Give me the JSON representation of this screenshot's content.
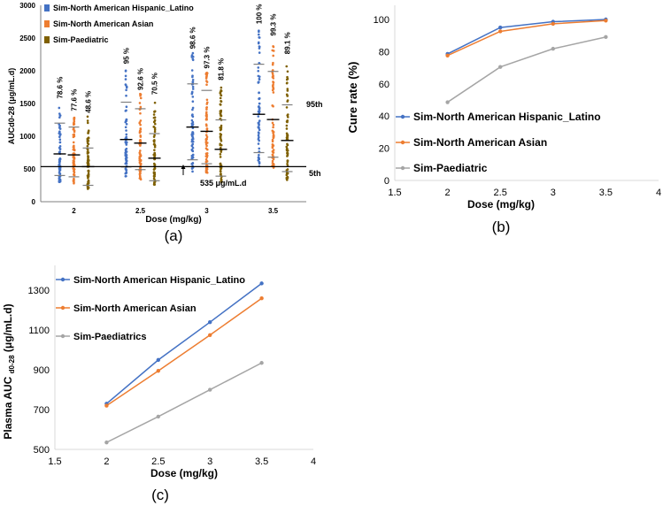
{
  "chart_data": [
    {
      "panel": "a",
      "type": "scatter",
      "caption": "(a)",
      "xlabel": "Dose (mg/kg)",
      "ylabel": "AUCd0-28 (μg/mL.d)",
      "ylim": [
        0,
        3000
      ],
      "yticks": [
        "0",
        "500",
        "1000",
        "1500",
        "2000",
        "2500",
        "3000"
      ],
      "categories": [
        "2",
        "2.5",
        "3",
        "3.5"
      ],
      "threshold": {
        "value": 535,
        "label": "535 μg/mL.d",
        "p5_label": "5th",
        "p95_label": "95th"
      },
      "series": [
        {
          "name": "Sim-North American Hispanic_Latino",
          "color": "#4472c4",
          "cure_labels": [
            "78.6 %",
            "95 %",
            "98.6 %",
            "100 %"
          ],
          "median": [
            730,
            950,
            1140,
            1335
          ],
          "p5": [
            400,
            530,
            640,
            750
          ],
          "p95": [
            1200,
            1520,
            1800,
            2100
          ],
          "min": [
            300,
            380,
            450,
            540
          ],
          "max": [
            1520,
            2050,
            2280,
            2660
          ]
        },
        {
          "name": "Sim-North American Asian",
          "color": "#ed7d31",
          "cure_labels": [
            "77.6 %",
            "92.6 %",
            "97.3 %",
            "99.3 %"
          ],
          "median": [
            715,
            895,
            1075,
            1255
          ],
          "p5": [
            380,
            490,
            580,
            680
          ],
          "p95": [
            1140,
            1420,
            1700,
            1990
          ],
          "min": [
            280,
            340,
            400,
            500
          ],
          "max": [
            1330,
            1650,
            1980,
            2480
          ]
        },
        {
          "name": "Sim-Paediatric",
          "color": "#7f6000",
          "cure_labels": [
            "48.6 %",
            "70.5 %",
            "81.8 %",
            "89.1 %"
          ],
          "median": [
            535,
            665,
            800,
            935
          ],
          "p5": [
            250,
            320,
            390,
            460
          ],
          "p95": [
            820,
            1040,
            1250,
            1480
          ],
          "min": [
            180,
            230,
            280,
            330
          ],
          "max": [
            1300,
            1580,
            1800,
            2200
          ]
        }
      ]
    },
    {
      "panel": "b",
      "type": "line",
      "caption": "(b)",
      "xlabel": "Dose (mg/kg)",
      "ylabel": "Cure rate (%)",
      "xlim": [
        1.5,
        4
      ],
      "ylim": [
        0,
        100
      ],
      "xticks": [
        "1.5",
        "2",
        "2.5",
        "3",
        "3.5",
        "4"
      ],
      "yticks": [
        "0",
        "20",
        "40",
        "60",
        "80",
        "100"
      ],
      "x": [
        2,
        2.5,
        3,
        3.5
      ],
      "series": [
        {
          "name": "Sim-North American Hispanic_Latino",
          "color": "#4472c4",
          "values": [
            78.6,
            95,
            98.6,
            100
          ]
        },
        {
          "name": "Sim-North American Asian",
          "color": "#ed7d31",
          "values": [
            77.6,
            92.6,
            97.3,
            99.3
          ]
        },
        {
          "name": "Sim-Paediatric",
          "color": "#a5a5a5",
          "values": [
            48.6,
            70.5,
            81.8,
            89.1
          ]
        }
      ]
    },
    {
      "panel": "c",
      "type": "line",
      "caption": "(c)",
      "xlabel": "Dose (mg/kg)",
      "ylabel_main": "Plasma AUC ",
      "ylabel_sub": "d0-28",
      "ylabel_unit": " (μg/mL.d)",
      "xlim": [
        1.5,
        4
      ],
      "ylim": [
        500,
        1350
      ],
      "xticks": [
        "1.5",
        "2",
        "2.5",
        "3",
        "3.5",
        "4"
      ],
      "yticks": [
        "500",
        "700",
        "900",
        "1100",
        "1300"
      ],
      "x": [
        2,
        2.5,
        3,
        3.5
      ],
      "series": [
        {
          "name": "Sim-North American Hispanic_Latino",
          "color": "#4472c4",
          "values": [
            730,
            950,
            1140,
            1335
          ]
        },
        {
          "name": "Sim-North American Asian",
          "color": "#ed7d31",
          "values": [
            720,
            895,
            1075,
            1260
          ]
        },
        {
          "name": "Sim-Paediatrics",
          "color": "#a5a5a5",
          "values": [
            535,
            665,
            800,
            935
          ]
        }
      ]
    }
  ]
}
